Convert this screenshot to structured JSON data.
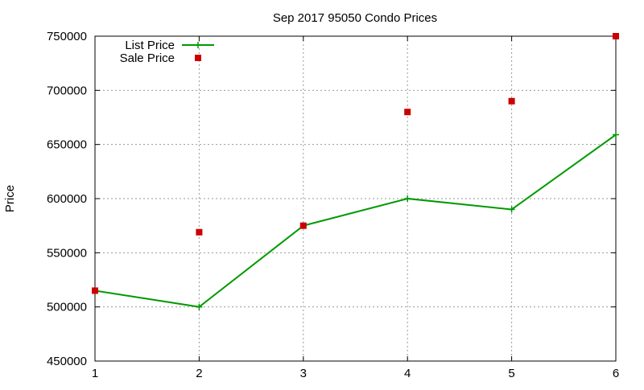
{
  "chart_data": {
    "type": "line",
    "title": "Sep 2017 95050 Condo Prices",
    "xlabel": "",
    "ylabel": "Price",
    "xlim": [
      1,
      6
    ],
    "ylim": [
      450000,
      750000
    ],
    "xticks": [
      "1",
      "2",
      "3",
      "4",
      "5",
      "6"
    ],
    "yticks": [
      "450000",
      "500000",
      "550000",
      "600000",
      "650000",
      "700000",
      "750000"
    ],
    "grid": true,
    "legend_position": "top-left",
    "series": [
      {
        "name": "List Price",
        "style": "line-with-plus-markers",
        "color": "#009900",
        "x": [
          1,
          2,
          3,
          4,
          5,
          6
        ],
        "y": [
          515000,
          500000,
          575000,
          600000,
          590000,
          659000
        ]
      },
      {
        "name": "Sale Price",
        "style": "square-markers",
        "color": "#cc0000",
        "x": [
          1,
          2,
          3,
          4,
          5,
          6
        ],
        "y": [
          515000,
          569000,
          575000,
          680000,
          690000,
          750000
        ]
      }
    ]
  }
}
